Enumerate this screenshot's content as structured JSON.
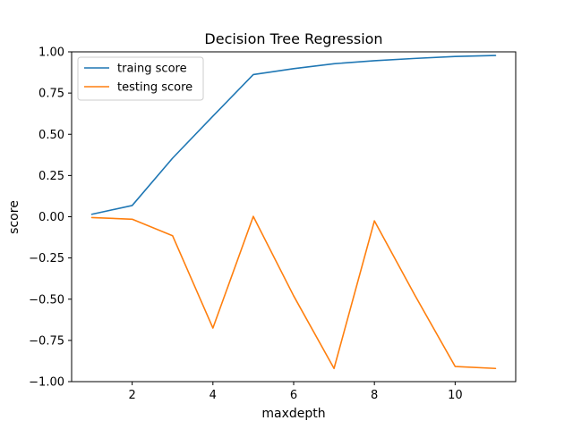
{
  "chart_data": {
    "type": "line",
    "title": "Decision Tree Regression",
    "xlabel": "maxdepth",
    "ylabel": "score",
    "x": [
      1,
      2,
      3,
      4,
      5,
      6,
      7,
      8,
      9,
      10,
      11
    ],
    "series": [
      {
        "name": "traing score",
        "color": "#1f77b4",
        "values": [
          0.015,
          0.068,
          0.355,
          0.61,
          0.862,
          0.898,
          0.928,
          0.946,
          0.96,
          0.972,
          0.978
        ]
      },
      {
        "name": "testing score",
        "color": "#ff7f0e",
        "values": [
          -0.005,
          -0.015,
          -0.115,
          -0.675,
          0.002,
          -0.48,
          -0.92,
          -0.025,
          -0.475,
          -0.908,
          -0.92
        ]
      }
    ],
    "xlim": [
      0.5,
      11.5
    ],
    "ylim": [
      -1.0,
      1.0
    ],
    "xticks": [
      2,
      4,
      6,
      8,
      10
    ],
    "yticks": [
      -1.0,
      -0.75,
      -0.5,
      -0.25,
      0.0,
      0.25,
      0.5,
      0.75,
      1.0
    ],
    "ytick_labels": [
      "−1.00",
      "−0.75",
      "−0.50",
      "−0.25",
      "0.00",
      "0.25",
      "0.50",
      "0.75",
      "1.00"
    ],
    "grid": false,
    "legend": "top-left"
  }
}
